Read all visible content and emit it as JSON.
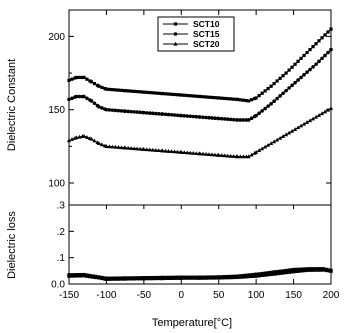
{
  "chart_data": [
    {
      "type": "line",
      "panel": "upper",
      "xlabel": "",
      "ylabel": "Dielectric Constant",
      "xlim": [
        -150,
        200
      ],
      "ylim": [
        85,
        218
      ],
      "yticks": [
        100,
        150,
        200
      ],
      "ytick_labels": [
        "100",
        "150",
        "200"
      ],
      "grid": false,
      "legend": "top-center",
      "x": [
        -150,
        -140,
        -130,
        -120,
        -110,
        -100,
        -75,
        -50,
        -25,
        0,
        25,
        50,
        75,
        90,
        100,
        120,
        140,
        160,
        180,
        200
      ],
      "series": [
        {
          "name": "SCT10",
          "marker": "square",
          "values": [
            170,
            172,
            172,
            169,
            166,
            164,
            163,
            162,
            161,
            160,
            159,
            158,
            157,
            156,
            158,
            166,
            175,
            185,
            195,
            205
          ]
        },
        {
          "name": "SCT15",
          "marker": "circle",
          "values": [
            157,
            159,
            159,
            156,
            152,
            150,
            149,
            148,
            147,
            146,
            145,
            144,
            143,
            143,
            146,
            154,
            163,
            172,
            181,
            191
          ]
        },
        {
          "name": "SCT20",
          "marker": "triangle",
          "values": [
            129,
            131,
            132,
            130,
            127,
            125,
            124,
            123,
            122,
            121,
            120,
            119,
            118,
            118,
            121,
            127,
            133,
            139,
            145,
            151
          ]
        }
      ]
    },
    {
      "type": "line",
      "panel": "lower",
      "xlabel": "Temperature[°C]",
      "ylabel": "Dielectric loss",
      "xlim": [
        -150,
        200
      ],
      "ylim": [
        0,
        0.3
      ],
      "yticks": [
        0.0,
        0.1,
        0.2,
        0.3
      ],
      "ytick_labels": [
        "0.0",
        ".1",
        ".2",
        ".3"
      ],
      "xticks": [
        -150,
        -100,
        -50,
        0,
        50,
        100,
        150,
        200
      ],
      "xtick_labels": [
        "-150",
        "-100",
        "-50",
        "0",
        "50",
        "100",
        "150",
        "200"
      ],
      "grid": false,
      "x": [
        -150,
        -130,
        -110,
        -100,
        -75,
        -50,
        -25,
        0,
        25,
        50,
        75,
        100,
        125,
        150,
        170,
        190,
        200
      ],
      "series": [
        {
          "name": "SCT10",
          "marker": "square",
          "values": [
            0.035,
            0.036,
            0.027,
            0.022,
            0.023,
            0.024,
            0.025,
            0.026,
            0.026,
            0.027,
            0.03,
            0.037,
            0.046,
            0.055,
            0.058,
            0.058,
            0.052
          ]
        },
        {
          "name": "SCT15",
          "marker": "circle",
          "values": [
            0.032,
            0.034,
            0.025,
            0.02,
            0.021,
            0.022,
            0.023,
            0.024,
            0.024,
            0.025,
            0.027,
            0.033,
            0.041,
            0.05,
            0.056,
            0.056,
            0.051
          ]
        },
        {
          "name": "SCT20",
          "marker": "triangle",
          "values": [
            0.03,
            0.031,
            0.023,
            0.018,
            0.019,
            0.02,
            0.021,
            0.022,
            0.022,
            0.023,
            0.025,
            0.03,
            0.038,
            0.047,
            0.052,
            0.053,
            0.049
          ]
        }
      ]
    }
  ]
}
